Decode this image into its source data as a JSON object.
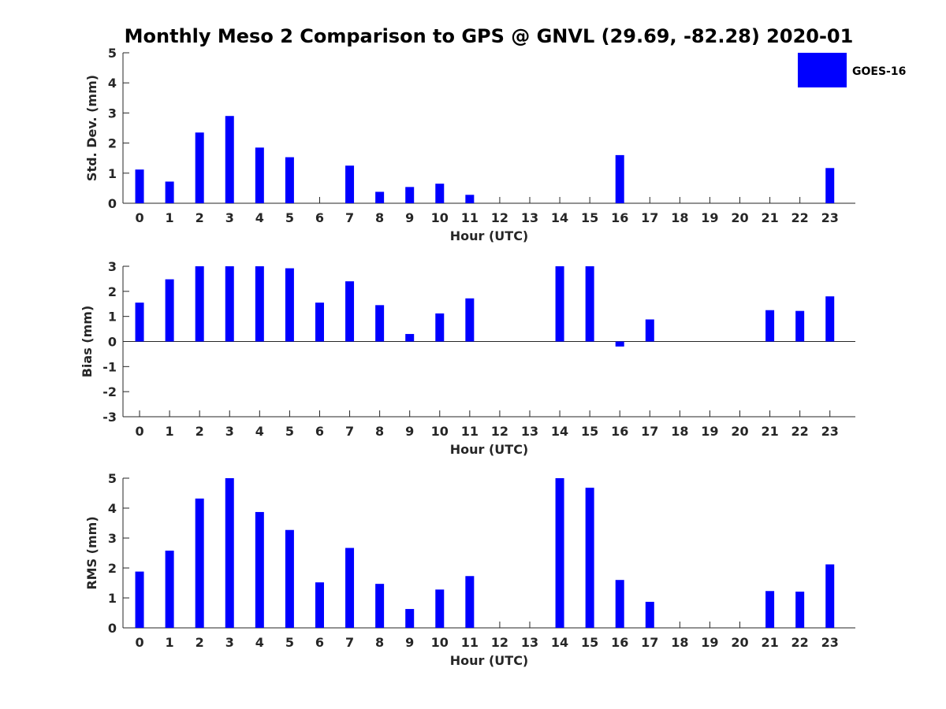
{
  "chart_data": {
    "title": "Monthly Meso 2 Comparison to GPS @ GNVL (29.69, -82.28) 2020-01",
    "legend": {
      "label": "GOES-16",
      "color": "#0000ff",
      "placement": "top-right"
    },
    "bar_color": "#0000ff",
    "panels": [
      {
        "type": "bar",
        "xlabel": "Hour (UTC)",
        "ylabel": "Std. Dev. (mm)",
        "ylim": [
          0,
          5
        ],
        "yticks": [
          "0",
          "1",
          "2",
          "3",
          "4",
          "5"
        ],
        "categories": [
          "0",
          "1",
          "2",
          "3",
          "4",
          "5",
          "6",
          "7",
          "8",
          "9",
          "10",
          "11",
          "12",
          "13",
          "14",
          "15",
          "16",
          "17",
          "18",
          "19",
          "20",
          "21",
          "22",
          "23"
        ],
        "series": [
          {
            "values": [
              1.12,
              0.72,
              2.35,
              2.9,
              1.85,
              1.53,
              null,
              1.25,
              0.38,
              0.54,
              0.65,
              0.28,
              null,
              null,
              null,
              null,
              1.6,
              null,
              null,
              null,
              null,
              null,
              null,
              1.17
            ]
          }
        ]
      },
      {
        "type": "bar",
        "xlabel": "Hour (UTC)",
        "ylabel": "Bias (mm)",
        "ylim": [
          -3,
          3
        ],
        "yticks": [
          "-3",
          "-2",
          "-1",
          "0",
          "1",
          "2",
          "3"
        ],
        "categories": [
          "0",
          "1",
          "2",
          "3",
          "4",
          "5",
          "6",
          "7",
          "8",
          "9",
          "10",
          "11",
          "12",
          "13",
          "14",
          "15",
          "16",
          "17",
          "18",
          "19",
          "20",
          "21",
          "22",
          "23"
        ],
        "series": [
          {
            "values": [
              1.55,
              2.48,
              3.0,
              3.0,
              3.0,
              2.92,
              1.55,
              2.4,
              1.45,
              0.3,
              1.12,
              1.72,
              null,
              null,
              3.0,
              3.0,
              -0.2,
              0.88,
              null,
              null,
              null,
              1.25,
              1.22,
              1.8
            ]
          }
        ]
      },
      {
        "type": "bar",
        "xlabel": "Hour (UTC)",
        "ylabel": "RMS (mm)",
        "ylim": [
          0,
          5
        ],
        "yticks": [
          "0",
          "1",
          "2",
          "3",
          "4",
          "5"
        ],
        "categories": [
          "0",
          "1",
          "2",
          "3",
          "4",
          "5",
          "6",
          "7",
          "8",
          "9",
          "10",
          "11",
          "12",
          "13",
          "14",
          "15",
          "16",
          "17",
          "18",
          "19",
          "20",
          "21",
          "22",
          "23"
        ],
        "series": [
          {
            "values": [
              1.88,
              2.58,
              4.32,
              5.0,
              3.87,
              3.27,
              1.52,
              2.67,
              1.47,
              0.63,
              1.28,
              1.73,
              null,
              null,
              5.0,
              4.68,
              1.6,
              0.87,
              null,
              null,
              null,
              1.23,
              1.21,
              2.12
            ]
          }
        ]
      }
    ]
  }
}
